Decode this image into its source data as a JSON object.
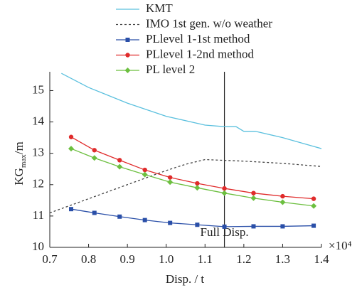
{
  "chart_data": {
    "type": "line",
    "x_label": "Disp. / t",
    "x_multiplier": "×10⁴",
    "y_label": {
      "main": "KG",
      "sub": "max",
      "unit": "/m"
    },
    "annotation": {
      "text": "Full Disp.",
      "x": 1.15
    },
    "xlim": [
      0.7,
      1.4
    ],
    "xticks": [
      0.7,
      0.8,
      0.9,
      {
        "value": 1.0,
        "label": "1.0"
      },
      1.1,
      1.2,
      1.3,
      1.4
    ],
    "ylim": [
      10,
      15.6
    ],
    "yticks": [
      10,
      11,
      12,
      13,
      14,
      15
    ],
    "series": [
      {
        "name": "KMT",
        "color": "#5bc0de",
        "style": "solid",
        "marker": "none",
        "x": [
          0.73,
          0.8,
          0.9,
          1.0,
          1.1,
          1.15,
          1.18,
          1.2,
          1.23,
          1.3,
          1.38,
          1.4
        ],
        "values": [
          15.55,
          15.1,
          14.6,
          14.18,
          13.9,
          13.85,
          13.85,
          13.7,
          13.7,
          13.5,
          13.22,
          13.15
        ]
      },
      {
        "name": "IMO 1st gen. w/o weather",
        "color": "#444444",
        "style": "dashed",
        "marker": "none",
        "x": [
          0.7,
          0.8,
          0.9,
          1.0,
          1.05,
          1.1,
          1.2,
          1.3,
          1.4
        ],
        "values": [
          11.1,
          11.55,
          12.0,
          12.45,
          12.65,
          12.8,
          12.75,
          12.68,
          12.58
        ]
      },
      {
        "name": "PLlevel 1-1st method",
        "color": "#2a4fa8",
        "style": "solid",
        "marker": "square",
        "x": [
          0.755,
          0.815,
          0.88,
          0.945,
          1.01,
          1.08,
          1.15,
          1.225,
          1.3,
          1.38
        ],
        "values": [
          11.22,
          11.1,
          10.98,
          10.87,
          10.78,
          10.72,
          10.66,
          10.67,
          10.67,
          10.69
        ]
      },
      {
        "name": "PLlevel 1-2nd method",
        "color": "#e02b2b",
        "style": "solid",
        "marker": "circle",
        "x": [
          0.755,
          0.815,
          0.88,
          0.945,
          1.01,
          1.08,
          1.15,
          1.225,
          1.3,
          1.38
        ],
        "values": [
          13.52,
          13.1,
          12.78,
          12.47,
          12.23,
          12.04,
          11.88,
          11.73,
          11.63,
          11.55
        ]
      },
      {
        "name": "PL level 2",
        "color": "#6cbf3f",
        "style": "solid",
        "marker": "diamond",
        "x": [
          0.755,
          0.815,
          0.88,
          0.945,
          1.01,
          1.08,
          1.15,
          1.225,
          1.3,
          1.38
        ],
        "values": [
          13.15,
          12.85,
          12.57,
          12.32,
          12.08,
          11.9,
          11.73,
          11.57,
          11.44,
          11.32
        ]
      }
    ]
  }
}
